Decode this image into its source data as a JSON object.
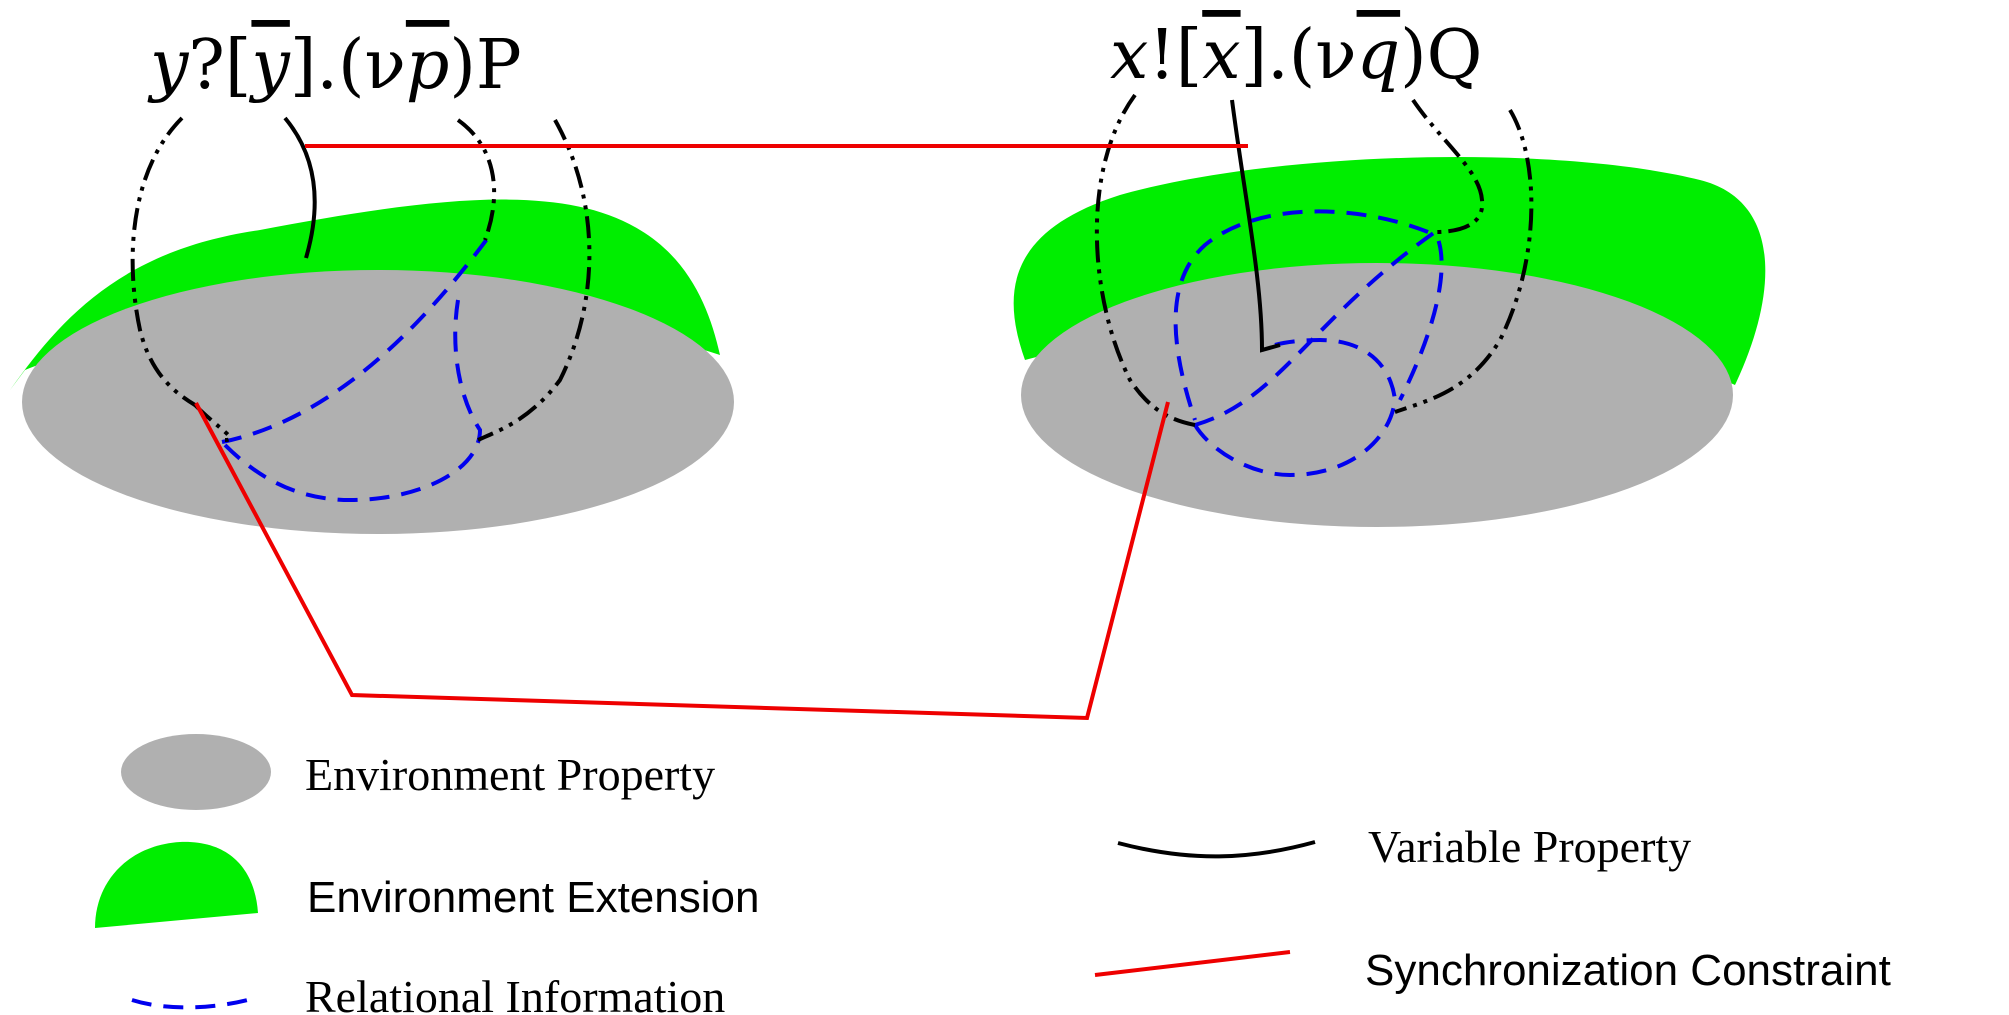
{
  "colors": {
    "environment": "#b0b0b0",
    "extension": "#00ee00",
    "relational": "#0000ee",
    "variable": "#000000",
    "sync": "#ee0000"
  },
  "processes": {
    "left": {
      "channel": "y",
      "action": "?",
      "params": "y",
      "restricted": "p",
      "continuation": "P"
    },
    "right": {
      "channel": "x",
      "action": "!",
      "params": "x",
      "restricted": "q",
      "continuation": "Q"
    }
  },
  "legend": {
    "environment_property": "Environment Property",
    "environment_extension": "Environment Extension",
    "relational_information": "Relational Information",
    "variable_property": "Variable Property",
    "synchronization_constraint": "Synchronization Constraint"
  }
}
